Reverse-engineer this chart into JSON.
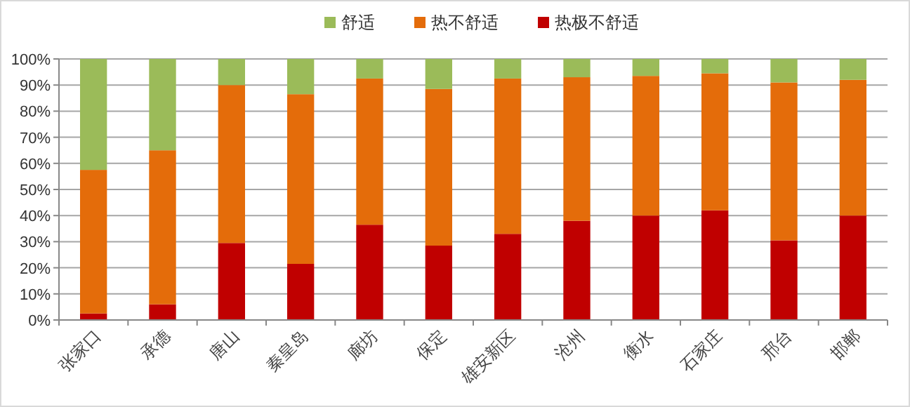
{
  "chart_data": {
    "type": "bar",
    "stacked": true,
    "legend": "top",
    "grid": "y",
    "categories": [
      "张家口",
      "承德",
      "唐山",
      "秦皇岛",
      "廊坊",
      "保定",
      "雄安新区",
      "沧州",
      "衡水",
      "石家庄",
      "邢台",
      "邯郸"
    ],
    "ylim": [
      0,
      100
    ],
    "yticks": [
      {
        "value": 0,
        "label": "0%"
      },
      {
        "value": 10,
        "label": "10%"
      },
      {
        "value": 20,
        "label": "20%"
      },
      {
        "value": 30,
        "label": "30%"
      },
      {
        "value": 40,
        "label": "40%"
      },
      {
        "value": 50,
        "label": "50%"
      },
      {
        "value": 60,
        "label": "60%"
      },
      {
        "value": 70,
        "label": "70%"
      },
      {
        "value": 80,
        "label": "80%"
      },
      {
        "value": 90,
        "label": "90%"
      },
      {
        "value": 100,
        "label": "100%"
      }
    ],
    "series": [
      {
        "name": "热极不舒适",
        "color": "#c00000",
        "values": [
          2.5,
          6,
          29.5,
          21.5,
          36.5,
          28.5,
          33,
          38,
          40,
          42,
          30.5,
          40
        ]
      },
      {
        "name": "热不舒适",
        "color": "#e46c0a",
        "values": [
          55,
          59,
          60.5,
          65,
          56,
          60,
          59.5,
          55,
          53.5,
          52.5,
          60.5,
          52
        ]
      },
      {
        "name": "舒适",
        "color": "#9bbb59",
        "values": [
          42.5,
          35,
          10,
          13.5,
          7.5,
          11.5,
          7.5,
          7,
          6.5,
          5.5,
          9,
          8
        ]
      }
    ]
  }
}
